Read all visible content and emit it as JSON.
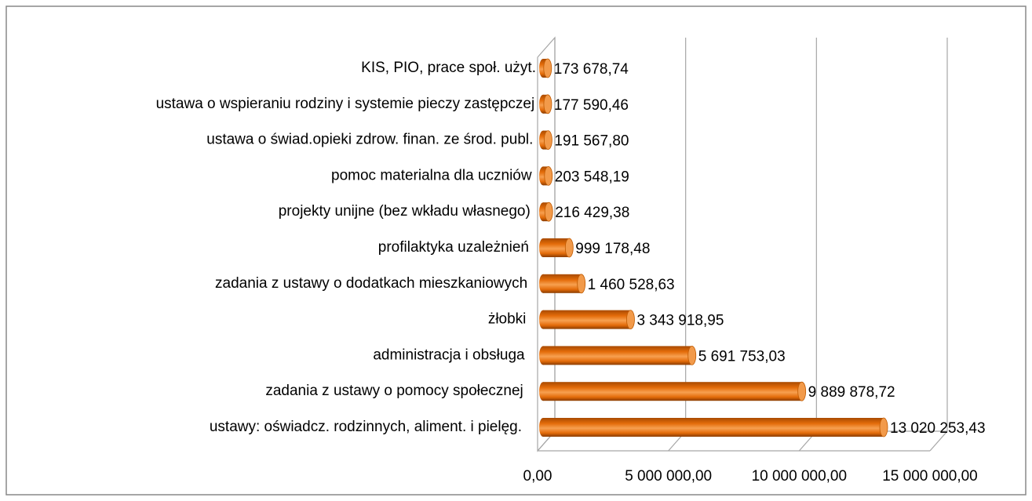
{
  "chart_data": {
    "type": "bar",
    "orientation": "horizontal",
    "categories": [
      "KIS, PIO, prace społ. użyt.",
      "ustawa o wspieraniu rodziny i systemie pieczy zastępczej",
      "ustawa o świad.opieki zdrow. finan. ze środ. publ.",
      "pomoc materialna dla uczniów",
      "projekty unijne (bez wkładu własnego)",
      "profilaktyka uzależnień",
      "zadania z ustawy o dodatkach mieszkaniowych",
      "żłobki",
      "administracja i obsługa",
      "zadania z ustawy o pomocy społecznej",
      "ustawy: oświadcz. rodzinnych, aliment. i pielęg."
    ],
    "values": [
      173678.74,
      177590.46,
      191567.8,
      203548.19,
      216429.38,
      999178.48,
      1460528.63,
      3343918.95,
      5691753.03,
      9889878.72,
      13020253.43
    ],
    "value_labels": [
      "173 678,74",
      "177 590,46",
      "191 567,80",
      "203 548,19",
      "216 429,38",
      "999 178,48",
      "1 460 528,63",
      "3 343 918,95",
      "5 691 753,03",
      "9 889 878,72",
      "13 020 253,43"
    ],
    "color": "#e46c0a",
    "xlim": [
      0,
      15000000
    ],
    "xticks": [
      {
        "value": 0,
        "label": "0,00"
      },
      {
        "value": 5000000,
        "label": "5 000 000,00"
      },
      {
        "value": 10000000,
        "label": "10 000 000,00"
      },
      {
        "value": 15000000,
        "label": "15 000 000,00"
      }
    ],
    "grid": true
  }
}
